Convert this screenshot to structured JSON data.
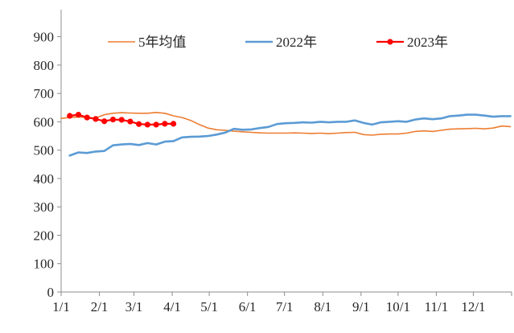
{
  "chart_data": {
    "type": "line",
    "ylim": [
      0,
      950
    ],
    "yticks": [
      0,
      100,
      200,
      300,
      400,
      500,
      600,
      700,
      800,
      900
    ],
    "x_tick_labels": [
      "1/1",
      "2/1",
      "3/1",
      "4/1",
      "5/1",
      "6/1",
      "7/1",
      "8/1",
      "9/1",
      "10/1",
      "11/1",
      "12/1"
    ],
    "x_tick_days": [
      0,
      31,
      59,
      90,
      120,
      151,
      181,
      212,
      243,
      273,
      304,
      334
    ],
    "x_range_days": [
      0,
      365
    ],
    "grid": false,
    "legend_position": "top",
    "series": [
      {
        "name": "5年均值",
        "color": "#ED7D31",
        "marker": false,
        "points": [
          [
            0,
            612
          ],
          [
            7,
            615
          ],
          [
            14,
            617
          ],
          [
            21,
            615
          ],
          [
            28,
            613
          ],
          [
            35,
            625
          ],
          [
            42,
            630
          ],
          [
            49,
            632
          ],
          [
            56,
            631
          ],
          [
            63,
            630
          ],
          [
            70,
            630
          ],
          [
            77,
            633
          ],
          [
            84,
            630
          ],
          [
            91,
            621
          ],
          [
            98,
            615
          ],
          [
            105,
            605
          ],
          [
            112,
            590
          ],
          [
            119,
            578
          ],
          [
            126,
            572
          ],
          [
            133,
            570
          ],
          [
            140,
            567
          ],
          [
            147,
            565
          ],
          [
            154,
            563
          ],
          [
            161,
            561
          ],
          [
            168,
            560
          ],
          [
            175,
            560
          ],
          [
            182,
            560
          ],
          [
            189,
            561
          ],
          [
            196,
            560
          ],
          [
            203,
            559
          ],
          [
            210,
            560
          ],
          [
            217,
            558
          ],
          [
            224,
            560
          ],
          [
            231,
            562
          ],
          [
            238,
            563
          ],
          [
            245,
            555
          ],
          [
            252,
            553
          ],
          [
            259,
            556
          ],
          [
            266,
            557
          ],
          [
            273,
            557
          ],
          [
            280,
            560
          ],
          [
            287,
            566
          ],
          [
            294,
            568
          ],
          [
            301,
            566
          ],
          [
            308,
            570
          ],
          [
            315,
            574
          ],
          [
            322,
            575
          ],
          [
            329,
            576
          ],
          [
            336,
            577
          ],
          [
            343,
            575
          ],
          [
            350,
            578
          ],
          [
            357,
            585
          ],
          [
            364,
            583
          ]
        ]
      },
      {
        "name": "2022年",
        "color": "#5B9BD5",
        "marker": false,
        "points": [
          [
            7,
            481
          ],
          [
            14,
            492
          ],
          [
            21,
            490
          ],
          [
            28,
            495
          ],
          [
            35,
            497
          ],
          [
            42,
            517
          ],
          [
            49,
            520
          ],
          [
            56,
            522
          ],
          [
            63,
            518
          ],
          [
            70,
            525
          ],
          [
            77,
            520
          ],
          [
            84,
            530
          ],
          [
            91,
            532
          ],
          [
            98,
            545
          ],
          [
            105,
            547
          ],
          [
            112,
            548
          ],
          [
            119,
            550
          ],
          [
            126,
            555
          ],
          [
            133,
            562
          ],
          [
            140,
            575
          ],
          [
            147,
            572
          ],
          [
            154,
            573
          ],
          [
            161,
            578
          ],
          [
            168,
            582
          ],
          [
            175,
            592
          ],
          [
            182,
            595
          ],
          [
            189,
            596
          ],
          [
            196,
            598
          ],
          [
            203,
            597
          ],
          [
            210,
            600
          ],
          [
            217,
            598
          ],
          [
            224,
            600
          ],
          [
            231,
            600
          ],
          [
            238,
            605
          ],
          [
            245,
            596
          ],
          [
            252,
            590
          ],
          [
            259,
            598
          ],
          [
            266,
            600
          ],
          [
            273,
            602
          ],
          [
            280,
            600
          ],
          [
            287,
            608
          ],
          [
            294,
            612
          ],
          [
            301,
            609
          ],
          [
            308,
            612
          ],
          [
            315,
            620
          ],
          [
            322,
            622
          ],
          [
            329,
            625
          ],
          [
            336,
            625
          ],
          [
            343,
            622
          ],
          [
            350,
            618
          ],
          [
            357,
            620
          ],
          [
            364,
            620
          ]
        ]
      },
      {
        "name": "2023年",
        "color": "#FF0000",
        "marker": true,
        "points": [
          [
            7,
            621
          ],
          [
            14,
            625
          ],
          [
            21,
            615
          ],
          [
            28,
            610
          ],
          [
            35,
            602
          ],
          [
            42,
            608
          ],
          [
            49,
            607
          ],
          [
            56,
            601
          ],
          [
            63,
            592
          ],
          [
            70,
            590
          ],
          [
            77,
            590
          ],
          [
            84,
            593
          ],
          [
            91,
            593
          ]
        ]
      }
    ]
  }
}
